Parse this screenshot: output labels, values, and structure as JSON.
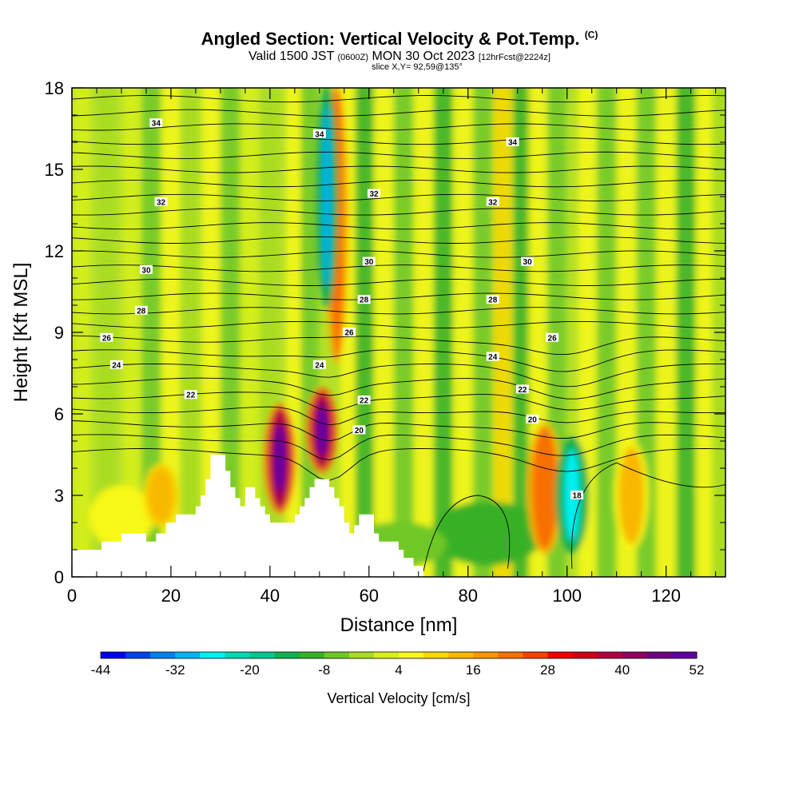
{
  "header": {
    "title_main": "Angled Section: Vertical Velocity & Pot.Temp.",
    "title_mark": "(C)",
    "valid_part1": "Valid 1500 JST",
    "valid_part2": "(0600Z)",
    "valid_part3": "MON 30 Oct 2023",
    "valid_part4": "[12hrFcst@2224z]",
    "slice": "slice X,Y= 92,59@135°"
  },
  "chart_data": {
    "type": "heatmap",
    "title": "Angled Section: Vertical Velocity & Pot.Temp.",
    "xlabel": "Distance [nm]",
    "ylabel": "Height [Kft MSL]",
    "xlim": [
      0,
      132
    ],
    "ylim": [
      0,
      18
    ],
    "x_ticks": [
      "0",
      "20",
      "40",
      "60",
      "80",
      "100",
      "120"
    ],
    "x_tick_values": [
      0,
      20,
      40,
      60,
      80,
      100,
      120
    ],
    "y_ticks": [
      "0",
      "3",
      "6",
      "9",
      "12",
      "15",
      "18"
    ],
    "y_tick_values": [
      0,
      3,
      6,
      9,
      12,
      15,
      18
    ],
    "colorbar": {
      "label": "Vertical Velocity [cm/s]",
      "tick_labels": [
        "-44",
        "-32",
        "-20",
        "-8",
        "4",
        "16",
        "28",
        "40",
        "52"
      ],
      "tick_values": [
        -44,
        -32,
        -20,
        -8,
        4,
        16,
        28,
        40,
        52
      ],
      "colors": [
        "#0000f0",
        "#0040f0",
        "#0080f0",
        "#00b4f0",
        "#00f0f0",
        "#00d8b0",
        "#00c890",
        "#10b050",
        "#38b028",
        "#70c828",
        "#a8dc20",
        "#d8f018",
        "#f8f818",
        "#f8d800",
        "#f8b800",
        "#f89800",
        "#f87000",
        "#f84000",
        "#f00000",
        "#d00018",
        "#b00040",
        "#900060",
        "#700080",
        "#6000a0"
      ]
    },
    "contours": {
      "variable": "Potential temperature (°C)",
      "labels": [
        "18",
        "20",
        "22",
        "24",
        "26",
        "28",
        "30",
        "32",
        "34"
      ]
    },
    "features": [
      {
        "x": 42,
        "z_range": [
          2.5,
          6.2
        ],
        "w_cm_s": 52
      },
      {
        "x": 50.5,
        "z_range": [
          4,
          6.8
        ],
        "w_cm_s": 52
      },
      {
        "x": 53.5,
        "z_range": [
          8,
          18
        ],
        "w_cm_s": 28
      },
      {
        "x": 51.5,
        "z_range": [
          10,
          18
        ],
        "w_cm_s": -32
      },
      {
        "x": 95.5,
        "z_range": [
          1,
          5.5
        ],
        "w_cm_s": 30
      },
      {
        "x": 101,
        "z_range": [
          1,
          5
        ],
        "w_cm_s": -26
      },
      {
        "x": 113,
        "z_range": [
          1.2,
          4.8
        ],
        "w_cm_s": 16
      },
      {
        "x": 18,
        "z_range": [
          2,
          4
        ],
        "w_cm_s": 20
      }
    ]
  }
}
